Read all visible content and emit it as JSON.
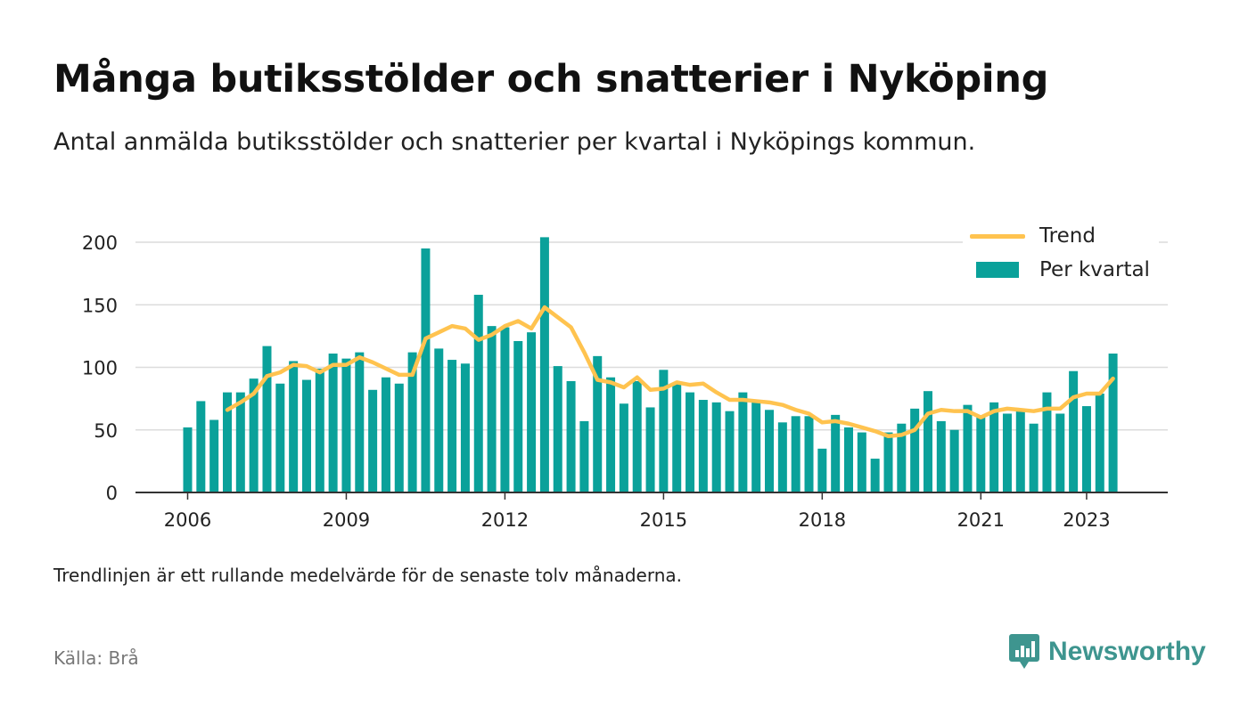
{
  "header": {
    "title": "Många butiksstölder och snatterier i Nyköping",
    "subtitle": "Antal anmälda butiksstölder och snatterier per kvartal i Nyköpings kommun."
  },
  "footer": {
    "note": "Trendlinjen är ett rullande medelvärde för de senaste tolv månaderna.",
    "source": "Källa: Brå",
    "brand": "Newsworthy"
  },
  "colors": {
    "bar": "#0aa19a",
    "trend": "#ffc34f",
    "grid": "#dcdcdc",
    "axis": "#333333",
    "brand": "#3e958f"
  },
  "chart_data": {
    "type": "bar",
    "x_unit": "quarter",
    "first_quarter": "2006 Q1",
    "x_tick_labels": [
      "2006",
      "2009",
      "2012",
      "2015",
      "2018",
      "2021",
      "2023"
    ],
    "y_ticks": [
      0,
      50,
      100,
      150,
      200
    ],
    "ylim": [
      0,
      210
    ],
    "grid": true,
    "legend_position": "top-right",
    "series": [
      {
        "name": "Per kvartal",
        "type": "bar",
        "values": [
          52,
          73,
          58,
          80,
          80,
          91,
          117,
          87,
          105,
          90,
          99,
          111,
          107,
          112,
          82,
          92,
          87,
          112,
          195,
          115,
          106,
          103,
          158,
          133,
          132,
          121,
          128,
          204,
          101,
          89,
          57,
          109,
          92,
          71,
          89,
          68,
          98,
          87,
          80,
          74,
          72,
          65,
          80,
          72,
          66,
          56,
          61,
          61,
          35,
          62,
          52,
          48,
          27,
          48,
          55,
          67,
          81,
          57,
          50,
          70,
          60,
          72,
          63,
          65,
          55,
          80,
          63,
          97,
          69,
          79,
          111
        ]
      },
      {
        "name": "Trend",
        "type": "line",
        "start_index": 3,
        "values": [
          66,
          72,
          79,
          93,
          96,
          102,
          101,
          96,
          102,
          102,
          108,
          104,
          99,
          94,
          94,
          123,
          128,
          133,
          131,
          122,
          126,
          133,
          137,
          131,
          148,
          140,
          132,
          112,
          90,
          88,
          84,
          92,
          82,
          83,
          88,
          86,
          87,
          80,
          74,
          74,
          73,
          72,
          70,
          66,
          63,
          56,
          57,
          55,
          52,
          49,
          45,
          46,
          50,
          63,
          66,
          65,
          65,
          60,
          65,
          67,
          66,
          65,
          67,
          67,
          76,
          79,
          79,
          91
        ]
      }
    ]
  }
}
